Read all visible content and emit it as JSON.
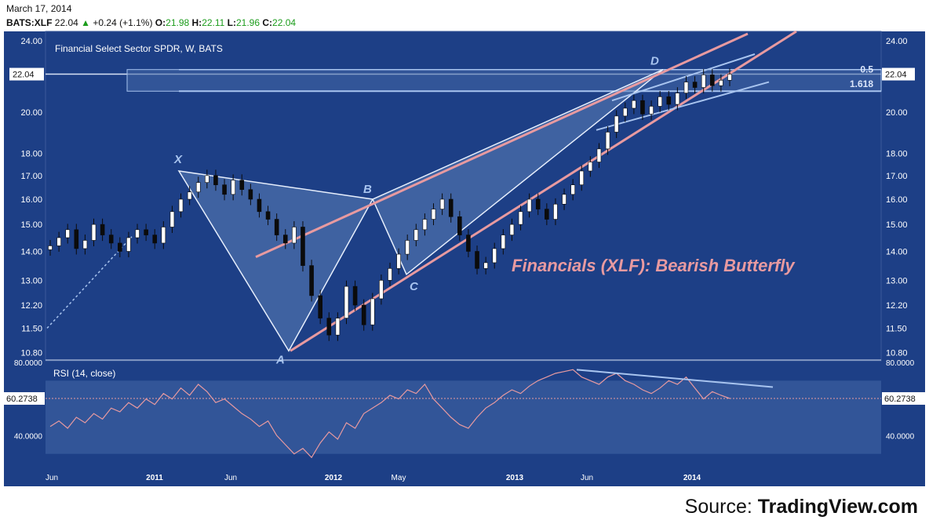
{
  "header": {
    "date": "March 17, 2014",
    "symbol": "BATS:XLF",
    "last": "22.04",
    "change": "+0.24 (+1.1%)",
    "open_label": "O:",
    "open": "21.98",
    "high_label": "H:",
    "high": "22.11",
    "low_label": "L:",
    "low": "21.96",
    "close_label": "C:",
    "close": "22.04"
  },
  "source": {
    "prefix": "Source:",
    "name": "TradingView.com"
  },
  "colors": {
    "background": "#1d3f86",
    "band": "#4468a8",
    "pattern_fill": "#5b7fb8",
    "pink": "#e89aa0",
    "light_blue": "#a8c4ef",
    "rsi_line": "#e89aa0"
  },
  "chart_data": [
    {
      "type": "candlestick",
      "title": "Financial Select Sector SPDR, W, BATS",
      "annotation": "Financials (XLF): Bearish Butterfly",
      "scale": "log",
      "ylim": [
        10.75,
        24.2
      ],
      "y_ticks": [
        "24.00",
        "22.04",
        "20.00",
        "18.00",
        "17.00",
        "16.00",
        "15.00",
        "14.00",
        "13.00",
        "12.20",
        "11.50",
        "10.80"
      ],
      "last_price_label": "22.04",
      "x_ticks": [
        "Jun",
        "2011",
        "Jun",
        "2012",
        "May",
        "2013",
        "Jun",
        "2014"
      ],
      "pattern_points": [
        {
          "label": "X",
          "date": "2011-04",
          "price": 17.2
        },
        {
          "label": "A",
          "date": "2011-10",
          "price": 10.85
        },
        {
          "label": "B",
          "date": "2012-03",
          "price": 16.0
        },
        {
          "label": "C",
          "date": "2012-06",
          "price": 13.2
        },
        {
          "label": "D",
          "date": "2013-11",
          "price": 22.3
        }
      ],
      "fib_labels": [
        "0.5",
        "1.618"
      ],
      "approx_closes": [
        14.2,
        14.5,
        14.8,
        14.1,
        14.4,
        15.0,
        14.6,
        14.3,
        14.0,
        14.5,
        14.8,
        14.6,
        14.3,
        14.9,
        15.5,
        16.0,
        16.3,
        16.7,
        17.0,
        16.6,
        16.2,
        16.8,
        16.4,
        16.0,
        15.5,
        15.2,
        14.6,
        14.3,
        14.9,
        13.5,
        12.5,
        11.8,
        11.3,
        11.8,
        12.8,
        12.2,
        11.6,
        12.4,
        13.0,
        13.4,
        13.9,
        14.4,
        14.8,
        15.2,
        15.6,
        16.0,
        15.3,
        14.6,
        14.0,
        13.4,
        13.6,
        14.1,
        14.6,
        15.0,
        15.5,
        16.0,
        15.6,
        15.2,
        15.8,
        16.2,
        16.6,
        17.2,
        17.6,
        18.2,
        19.0,
        19.8,
        20.2,
        20.6,
        19.9,
        20.3,
        20.8,
        20.4,
        21.0,
        21.6,
        21.3,
        22.0,
        21.4,
        21.7,
        22.04
      ]
    },
    {
      "type": "line",
      "title": "RSI (14, close)",
      "ylim": [
        26,
        80
      ],
      "y_ticks": [
        "80.0000",
        "60.2738",
        "40.0000"
      ],
      "last_value_label": "60.2738",
      "values": [
        45,
        48,
        44,
        50,
        47,
        52,
        49,
        55,
        53,
        58,
        55,
        60,
        57,
        63,
        60,
        66,
        62,
        68,
        64,
        58,
        60,
        56,
        52,
        49,
        45,
        48,
        40,
        35,
        30,
        33,
        28,
        36,
        42,
        38,
        47,
        44,
        52,
        55,
        58,
        62,
        60,
        65,
        63,
        68,
        60,
        55,
        50,
        46,
        44,
        50,
        55,
        58,
        62,
        65,
        63,
        67,
        70,
        72,
        74,
        75,
        76,
        72,
        70,
        68,
        72,
        74,
        70,
        68,
        65,
        63,
        66,
        70,
        68,
        72,
        66,
        60,
        64,
        62,
        60.27
      ]
    }
  ]
}
